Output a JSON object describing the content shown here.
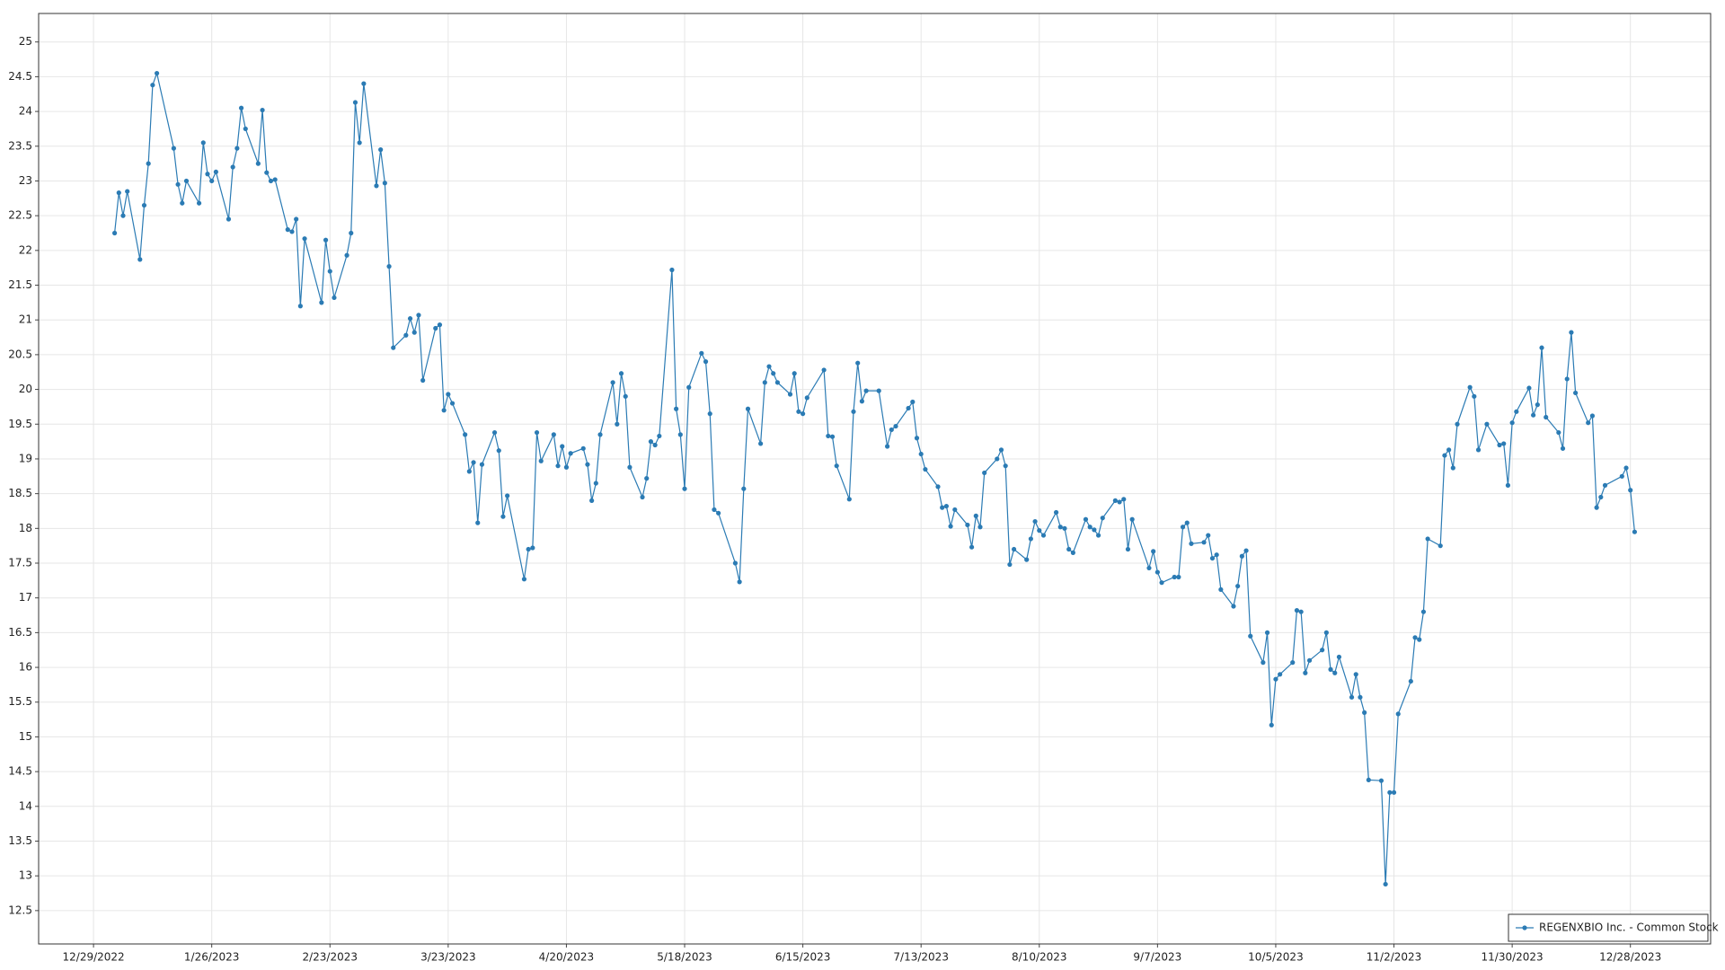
{
  "chart_data": {
    "type": "line",
    "x": [
      "1/3/2023",
      "1/4/2023",
      "1/5/2023",
      "1/6/2023",
      "1/9/2023",
      "1/10/2023",
      "1/11/2023",
      "1/12/2023",
      "1/13/2023",
      "1/17/2023",
      "1/18/2023",
      "1/19/2023",
      "1/20/2023",
      "1/23/2023",
      "1/24/2023",
      "1/25/2023",
      "1/26/2023",
      "1/27/2023",
      "1/30/2023",
      "1/31/2023",
      "2/1/2023",
      "2/2/2023",
      "2/3/2023",
      "2/6/2023",
      "2/7/2023",
      "2/8/2023",
      "2/9/2023",
      "2/10/2023",
      "2/13/2023",
      "2/14/2023",
      "2/15/2023",
      "2/16/2023",
      "2/17/2023",
      "2/21/2023",
      "2/22/2023",
      "2/23/2023",
      "2/24/2023",
      "2/27/2023",
      "2/28/2023",
      "3/1/2023",
      "3/2/2023",
      "3/3/2023",
      "3/6/2023",
      "3/7/2023",
      "3/8/2023",
      "3/9/2023",
      "3/10/2023",
      "3/13/2023",
      "3/14/2023",
      "3/15/2023",
      "3/16/2023",
      "3/17/2023",
      "3/20/2023",
      "3/21/2023",
      "3/22/2023",
      "3/23/2023",
      "3/24/2023",
      "3/27/2023",
      "3/28/2023",
      "3/29/2023",
      "3/30/2023",
      "3/31/2023",
      "4/3/2023",
      "4/4/2023",
      "4/5/2023",
      "4/6/2023",
      "4/10/2023",
      "4/11/2023",
      "4/12/2023",
      "4/13/2023",
      "4/14/2023",
      "4/17/2023",
      "4/18/2023",
      "4/19/2023",
      "4/20/2023",
      "4/21/2023",
      "4/24/2023",
      "4/25/2023",
      "4/26/2023",
      "4/27/2023",
      "4/28/2023",
      "5/1/2023",
      "5/2/2023",
      "5/3/2023",
      "5/4/2023",
      "5/5/2023",
      "5/8/2023",
      "5/9/2023",
      "5/10/2023",
      "5/11/2023",
      "5/12/2023",
      "5/15/2023",
      "5/16/2023",
      "5/17/2023",
      "5/18/2023",
      "5/19/2023",
      "5/22/2023",
      "5/23/2023",
      "5/24/2023",
      "5/25/2023",
      "5/26/2023",
      "5/30/2023",
      "5/31/2023",
      "6/1/2023",
      "6/2/2023",
      "6/5/2023",
      "6/6/2023",
      "6/7/2023",
      "6/8/2023",
      "6/9/2023",
      "6/12/2023",
      "6/13/2023",
      "6/14/2023",
      "6/15/2023",
      "6/16/2023",
      "6/20/2023",
      "6/21/2023",
      "6/22/2023",
      "6/23/2023",
      "6/26/2023",
      "6/27/2023",
      "6/28/2023",
      "6/29/2023",
      "6/30/2023",
      "7/3/2023",
      "7/5/2023",
      "7/6/2023",
      "7/7/2023",
      "7/10/2023",
      "7/11/2023",
      "7/12/2023",
      "7/13/2023",
      "7/14/2023",
      "7/17/2023",
      "7/18/2023",
      "7/19/2023",
      "7/20/2023",
      "7/21/2023",
      "7/24/2023",
      "7/25/2023",
      "7/26/2023",
      "7/27/2023",
      "7/28/2023",
      "7/31/2023",
      "8/1/2023",
      "8/2/2023",
      "8/3/2023",
      "8/4/2023",
      "8/7/2023",
      "8/8/2023",
      "8/9/2023",
      "8/10/2023",
      "8/11/2023",
      "8/14/2023",
      "8/15/2023",
      "8/16/2023",
      "8/17/2023",
      "8/18/2023",
      "8/21/2023",
      "8/22/2023",
      "8/23/2023",
      "8/24/2023",
      "8/25/2023",
      "8/28/2023",
      "8/29/2023",
      "8/30/2023",
      "8/31/2023",
      "9/1/2023",
      "9/5/2023",
      "9/6/2023",
      "9/7/2023",
      "9/8/2023",
      "9/11/2023",
      "9/12/2023",
      "9/13/2023",
      "9/14/2023",
      "9/15/2023",
      "9/18/2023",
      "9/19/2023",
      "9/20/2023",
      "9/21/2023",
      "9/22/2023",
      "9/25/2023",
      "9/26/2023",
      "9/27/2023",
      "9/28/2023",
      "9/29/2023",
      "10/2/2023",
      "10/3/2023",
      "10/4/2023",
      "10/5/2023",
      "10/6/2023",
      "10/9/2023",
      "10/10/2023",
      "10/11/2023",
      "10/12/2023",
      "10/13/2023",
      "10/16/2023",
      "10/17/2023",
      "10/18/2023",
      "10/19/2023",
      "10/20/2023",
      "10/23/2023",
      "10/24/2023",
      "10/25/2023",
      "10/26/2023",
      "10/27/2023",
      "10/30/2023",
      "10/31/2023",
      "11/1/2023",
      "11/2/2023",
      "11/3/2023",
      "11/6/2023",
      "11/7/2023",
      "11/8/2023",
      "11/9/2023",
      "11/10/2023",
      "11/13/2023",
      "11/14/2023",
      "11/15/2023",
      "11/16/2023",
      "11/17/2023",
      "11/20/2023",
      "11/21/2023",
      "11/22/2023",
      "11/24/2023",
      "11/27/2023",
      "11/28/2023",
      "11/29/2023",
      "11/30/2023",
      "12/1/2023",
      "12/4/2023",
      "12/5/2023",
      "12/6/2023",
      "12/7/2023",
      "12/8/2023",
      "12/11/2023",
      "12/12/2023",
      "12/13/2023",
      "12/14/2023",
      "12/15/2023",
      "12/18/2023",
      "12/19/2023",
      "12/20/2023",
      "12/21/2023",
      "12/22/2023",
      "12/26/2023",
      "12/27/2023",
      "12/28/2023",
      "12/29/2023"
    ],
    "series": [
      {
        "name": "REGENXBIO Inc. - Common Stock",
        "color": "#2b7bb4",
        "values": [
          22.25,
          22.83,
          22.5,
          22.85,
          21.87,
          22.65,
          23.25,
          24.38,
          24.55,
          23.47,
          22.95,
          22.68,
          23.0,
          22.68,
          23.55,
          23.1,
          23.0,
          23.13,
          22.45,
          23.2,
          23.47,
          24.05,
          23.75,
          23.25,
          24.02,
          23.12,
          23.0,
          23.02,
          22.3,
          22.27,
          22.45,
          21.2,
          22.17,
          21.25,
          22.15,
          21.7,
          21.32,
          21.93,
          22.25,
          24.13,
          23.55,
          24.4,
          22.93,
          23.45,
          22.97,
          21.77,
          20.6,
          20.78,
          21.02,
          20.82,
          21.07,
          20.13,
          20.88,
          20.93,
          19.7,
          19.93,
          19.8,
          19.35,
          18.82,
          18.95,
          18.08,
          18.92,
          19.38,
          19.12,
          18.17,
          18.47,
          17.27,
          17.7,
          17.72,
          19.38,
          18.97,
          19.35,
          18.9,
          19.18,
          18.88,
          19.08,
          19.15,
          18.92,
          18.4,
          18.65,
          19.35,
          20.1,
          19.5,
          20.23,
          19.9,
          18.88,
          18.45,
          18.72,
          19.25,
          19.2,
          19.33,
          21.72,
          19.72,
          19.35,
          18.57,
          20.03,
          20.52,
          20.4,
          19.65,
          18.27,
          18.22,
          17.5,
          17.23,
          18.57,
          19.72,
          19.22,
          20.1,
          20.33,
          20.23,
          20.1,
          19.93,
          20.23,
          19.68,
          19.65,
          19.88,
          20.28,
          19.33,
          19.32,
          18.9,
          18.42,
          19.68,
          20.38,
          19.83,
          19.98,
          19.98,
          19.18,
          19.42,
          19.47,
          19.73,
          19.82,
          19.3,
          19.07,
          18.85,
          18.6,
          18.3,
          18.32,
          18.03,
          18.27,
          18.05,
          17.73,
          18.18,
          18.02,
          18.8,
          19.0,
          19.13,
          18.9,
          17.48,
          17.7,
          17.55,
          17.85,
          18.1,
          17.97,
          17.9,
          18.23,
          18.02,
          18.0,
          17.7,
          17.65,
          18.13,
          18.02,
          17.98,
          17.9,
          18.15,
          18.4,
          18.38,
          18.42,
          17.7,
          18.13,
          17.43,
          17.67,
          17.37,
          17.22,
          17.3,
          17.3,
          18.02,
          18.08,
          17.78,
          17.8,
          17.9,
          17.57,
          17.62,
          17.12,
          16.88,
          17.17,
          17.6,
          17.68,
          16.45,
          16.07,
          16.5,
          15.17,
          15.83,
          15.9,
          16.07,
          16.82,
          16.8,
          15.92,
          16.1,
          16.25,
          16.5,
          15.97,
          15.92,
          16.15,
          15.57,
          15.9,
          15.57,
          15.35,
          14.38,
          14.37,
          12.88,
          14.2,
          14.2,
          15.33,
          15.8,
          16.43,
          16.4,
          16.8,
          17.85,
          17.75,
          19.05,
          19.13,
          18.87,
          19.5,
          20.03,
          19.9,
          19.13,
          19.5,
          19.2,
          19.22,
          18.62,
          19.52,
          19.68,
          20.02,
          19.63,
          19.78,
          20.6,
          19.6,
          19.38,
          19.15,
          20.15,
          20.82,
          19.95,
          19.52,
          19.62,
          18.3,
          18.45,
          18.62,
          18.75,
          18.87,
          18.55,
          17.95
        ]
      }
    ],
    "xlim": [
      "12/16/2022",
      "1/16/2024"
    ],
    "xticks": [
      "12/29/2022",
      "1/26/2023",
      "2/23/2023",
      "3/23/2023",
      "4/20/2023",
      "5/18/2023",
      "6/15/2023",
      "7/13/2023",
      "8/10/2023",
      "9/7/2023",
      "10/5/2023",
      "11/2/2023",
      "11/30/2023",
      "12/28/2023"
    ],
    "ylim": [
      12.02,
      25.41
    ],
    "yticks": [
      12.5,
      13,
      13.5,
      14,
      14.5,
      15,
      15.5,
      16,
      16.5,
      17,
      17.5,
      18,
      18.5,
      19,
      19.5,
      20,
      20.5,
      21,
      21.5,
      22,
      22.5,
      23,
      23.5,
      24,
      24.5,
      25
    ],
    "grid": true,
    "legend": "lower right",
    "markers": true
  }
}
